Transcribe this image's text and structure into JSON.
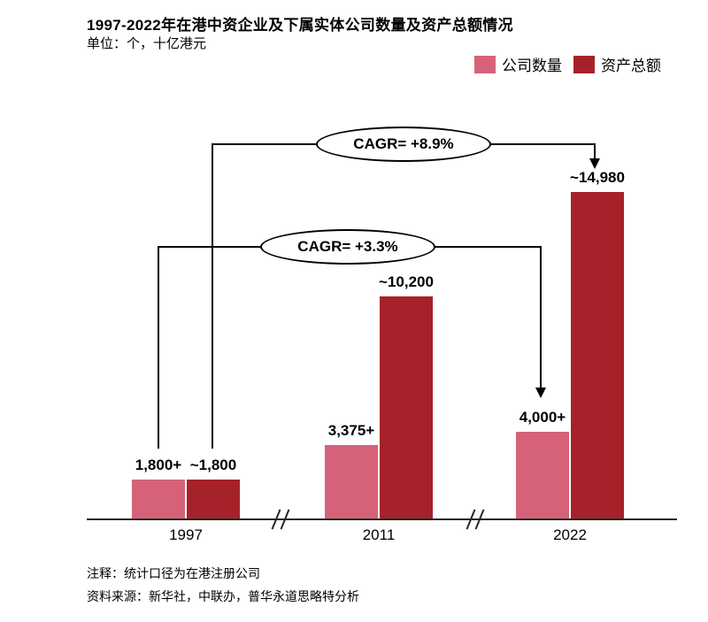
{
  "title": "1997-2022年在港中资企业及下属实体公司数量及资产总额情况",
  "unit_label": "单位：个，十亿港元",
  "legend": {
    "items": [
      {
        "label": "公司数量",
        "color": "#d6627a"
      },
      {
        "label": "资产总额",
        "color": "#a5222a"
      }
    ]
  },
  "chart_data": {
    "type": "bar",
    "title": "1997-2022年在港中资企业及下属实体公司数量及资产总额情况",
    "units": "个，十亿港元",
    "categories": [
      "1997",
      "2011",
      "2022"
    ],
    "series": [
      {
        "name": "公司数量",
        "color": "#d6627a",
        "values": [
          1800,
          3375,
          4000
        ],
        "value_labels": [
          "1,800+",
          "3,375+",
          "4,000+"
        ]
      },
      {
        "name": "资产总额",
        "color": "#a5222a",
        "values": [
          1800,
          10200,
          14980
        ],
        "value_labels": [
          "~1,800",
          "~10,200",
          "~14,980"
        ]
      }
    ],
    "annotations": [
      {
        "text": "CAGR= +8.9%",
        "series": "资产总额",
        "from": "1997",
        "to": "2022"
      },
      {
        "text": "CAGR= +3.3%",
        "series": "公司数量",
        "from": "1997",
        "to": "2022"
      }
    ],
    "axis_breaks_between": [
      [
        "1997",
        "2011"
      ],
      [
        "2011",
        "2022"
      ]
    ],
    "legend_position": "top-right",
    "grid": false
  },
  "footnotes": {
    "note": "注释：统计口径为在港注册公司",
    "source": "资料来源：新华社，中联办，普华永道思略特分析"
  }
}
